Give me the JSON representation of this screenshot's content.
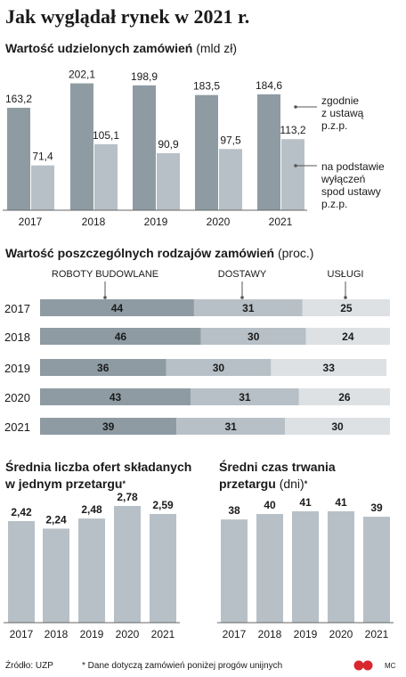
{
  "title": "Jak wyglądał rynek w 2021 r.",
  "colors": {
    "dark": "#8e9ba3",
    "light": "#b7c0c6",
    "lighter": "#dde1e4",
    "leader": "#555555",
    "source_logo": "#d9272e"
  },
  "chart_data": [
    {
      "type": "bar",
      "title": "Wartość udzielonych zamówień",
      "unit": "(mld zł)",
      "categories": [
        "2017",
        "2018",
        "2019",
        "2020",
        "2021"
      ],
      "series": [
        {
          "name": "zgodnie z ustawą p.z.p.",
          "values": [
            163.2,
            202.1,
            198.9,
            183.5,
            184.6
          ]
        },
        {
          "name": "na podstawie wyłączeń spod ustawy p.z.p.",
          "values": [
            71.4,
            105.1,
            90.9,
            97.5,
            113.2
          ]
        }
      ],
      "value_labels": [
        [
          "163,2",
          "202,1",
          "198,9",
          "183,5",
          "184,6"
        ],
        [
          "71,4",
          "105,1",
          "90,9",
          "97,5",
          "113,2"
        ]
      ],
      "legend": [
        [
          "zgodnie",
          "z ustawą",
          "p.z.p."
        ],
        [
          "na podstawie",
          "wyłączeń",
          "spod ustawy",
          "p.z.p."
        ]
      ],
      "ylim": [
        0,
        210
      ]
    },
    {
      "type": "bar",
      "orientation": "horizontal-stacked",
      "title": "Wartość poszczególnych rodzajów zamówień",
      "unit": "(proc.)",
      "categories": [
        "2017",
        "2018",
        "2019",
        "2020",
        "2021"
      ],
      "series": [
        {
          "name": "ROBOTY BUDOWLANE",
          "values": [
            44,
            46,
            36,
            43,
            39
          ]
        },
        {
          "name": "DOSTAWY",
          "values": [
            31,
            30,
            30,
            31,
            31
          ]
        },
        {
          "name": "USŁUGI",
          "values": [
            25,
            24,
            33,
            26,
            30
          ]
        }
      ]
    },
    {
      "type": "bar",
      "title": "Średnia liczba ofert składanych w jednym przetargu",
      "title_lines": [
        "Średnia liczba ofert składanych",
        "w jednym przetargu"
      ],
      "title_marker": "*",
      "categories": [
        "2017",
        "2018",
        "2019",
        "2020",
        "2021"
      ],
      "values": [
        2.42,
        2.24,
        2.48,
        2.78,
        2.59
      ],
      "value_labels": [
        "2,42",
        "2,24",
        "2,48",
        "2,78",
        "2,59"
      ],
      "ylim": [
        0,
        2.78
      ]
    },
    {
      "type": "bar",
      "title": "Średni czas trwania przetargu",
      "title_lines": [
        "Średni czas trwania",
        "przetargu"
      ],
      "unit": "(dni)",
      "title_marker": "*",
      "categories": [
        "2017",
        "2018",
        "2019",
        "2020",
        "2021"
      ],
      "values": [
        38,
        40,
        41,
        41,
        39
      ],
      "value_labels": [
        "38",
        "40",
        "41",
        "41",
        "39"
      ],
      "ylim": [
        0,
        41
      ]
    }
  ],
  "footer": {
    "source": "Źródło: UZP",
    "note": "* Dane dotyczą zamówień poniżej progów unijnych",
    "author": "MC",
    "logo_text": "rp"
  }
}
